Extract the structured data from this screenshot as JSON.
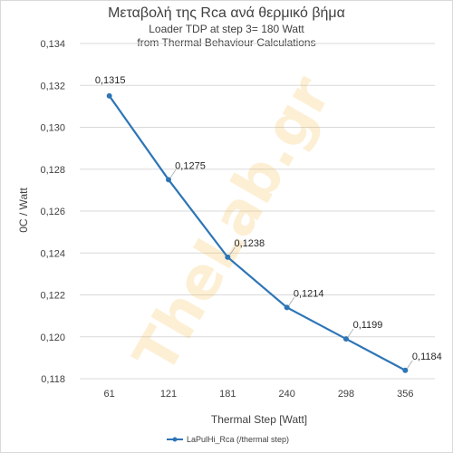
{
  "chart_data": {
    "type": "line",
    "title": "Μεταβολή της Rca ανά θερμικό βήμα",
    "subtitle_lines": [
      "Loader TDP at step 3= 180 Watt",
      "from Thermal Behaviour Calculations"
    ],
    "xlabel": "Thermal Step [Watt]",
    "ylabel": "0C / Watt",
    "categories": [
      "61",
      "121",
      "181",
      "240",
      "298",
      "356"
    ],
    "series": [
      {
        "name": "LaPulHi_Rca (/thermal step)",
        "values": [
          0.1315,
          0.1275,
          0.1238,
          0.1214,
          0.1199,
          0.1184
        ],
        "labels": [
          "0,1315",
          "0,1275",
          "0,1238",
          "0,1214",
          "0,1199",
          "0,1184"
        ],
        "color": "#2e75b6"
      }
    ],
    "y_ticks": [
      {
        "value": 0.118,
        "label": "0,118"
      },
      {
        "value": 0.12,
        "label": "0,120"
      },
      {
        "value": 0.122,
        "label": "0,122"
      },
      {
        "value": 0.124,
        "label": "0,124"
      },
      {
        "value": 0.126,
        "label": "0,126"
      },
      {
        "value": 0.128,
        "label": "0,128"
      },
      {
        "value": 0.13,
        "label": "0,130"
      },
      {
        "value": 0.132,
        "label": "0,132"
      },
      {
        "value": 0.134,
        "label": "0,134"
      }
    ],
    "ylim": [
      0.118,
      0.134
    ],
    "grid": true,
    "legend_position": "bottom"
  },
  "watermark": "TheLab.gr",
  "colors": {
    "gridline": "#d9d9d9",
    "series": "#2e75b6",
    "text": "#404040"
  }
}
